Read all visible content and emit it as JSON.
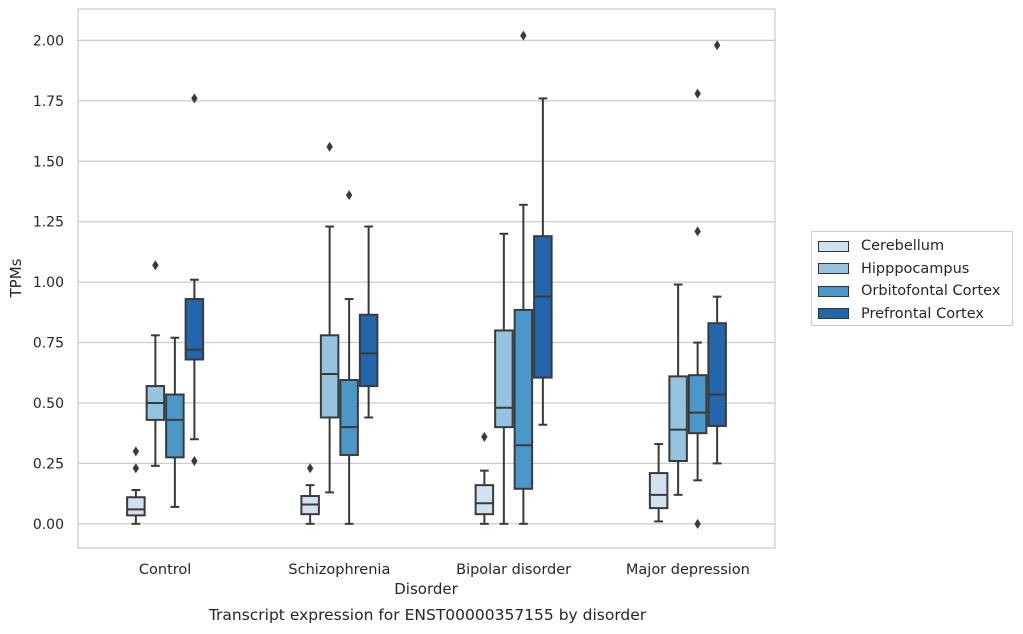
{
  "caption": "Transcript expression for ENST00000357155 by disorder",
  "chart_data": {
    "type": "box",
    "title": "",
    "xlabel": "Disorder",
    "ylabel": "TPMs",
    "ylim": [
      -0.1,
      2.13
    ],
    "yticks": [
      0.0,
      0.25,
      0.5,
      0.75,
      1.0,
      1.25,
      1.5,
      1.75,
      2.0
    ],
    "ytick_labels": [
      "0.00",
      "0.25",
      "0.50",
      "0.75",
      "1.00",
      "1.25",
      "1.50",
      "1.75",
      "2.00"
    ],
    "grid": "horizontal",
    "legend_position": "right",
    "categories": [
      "Control",
      "Schizophrenia",
      "Bipolar disorder",
      "Major depression"
    ],
    "series": [
      {
        "name": "Cerebellum",
        "color": "#d0e1f2",
        "boxes": [
          {
            "whislo": 0.0,
            "q1": 0.035,
            "med": 0.06,
            "q3": 0.11,
            "whishi": 0.14,
            "fliers": [
              0.23,
              0.3
            ]
          },
          {
            "whislo": 0.0,
            "q1": 0.04,
            "med": 0.08,
            "q3": 0.115,
            "whishi": 0.16,
            "fliers": [
              0.23
            ]
          },
          {
            "whislo": 0.0,
            "q1": 0.04,
            "med": 0.085,
            "q3": 0.16,
            "whishi": 0.22,
            "fliers": [
              0.36
            ]
          },
          {
            "whislo": 0.01,
            "q1": 0.065,
            "med": 0.12,
            "q3": 0.21,
            "whishi": 0.33,
            "fliers": []
          }
        ]
      },
      {
        "name": "Hipppocampus",
        "color": "#94c4df",
        "boxes": [
          {
            "whislo": 0.24,
            "q1": 0.43,
            "med": 0.5,
            "q3": 0.57,
            "whishi": 0.78,
            "fliers": [
              1.07
            ]
          },
          {
            "whislo": 0.13,
            "q1": 0.44,
            "med": 0.62,
            "q3": 0.78,
            "whishi": 1.23,
            "fliers": [
              1.56
            ]
          },
          {
            "whislo": 0.0,
            "q1": 0.4,
            "med": 0.48,
            "q3": 0.8,
            "whishi": 1.2,
            "fliers": []
          },
          {
            "whislo": 0.12,
            "q1": 0.26,
            "med": 0.39,
            "q3": 0.61,
            "whishi": 0.99,
            "fliers": []
          }
        ]
      },
      {
        "name": "Orbitofontal Cortex",
        "color": "#4a98c9",
        "boxes": [
          {
            "whislo": 0.07,
            "q1": 0.275,
            "med": 0.43,
            "q3": 0.535,
            "whishi": 0.77,
            "fliers": []
          },
          {
            "whislo": 0.0,
            "q1": 0.285,
            "med": 0.4,
            "q3": 0.595,
            "whishi": 0.93,
            "fliers": [
              1.36
            ]
          },
          {
            "whislo": 0.0,
            "q1": 0.145,
            "med": 0.325,
            "q3": 0.885,
            "whishi": 1.32,
            "fliers": [
              2.02
            ]
          },
          {
            "whislo": 0.18,
            "q1": 0.375,
            "med": 0.46,
            "q3": 0.615,
            "whishi": 0.75,
            "fliers": [
              0.0,
              1.21,
              1.78
            ]
          }
        ]
      },
      {
        "name": "Prefrontal Cortex",
        "color": "#2366ac",
        "boxes": [
          {
            "whislo": 0.35,
            "q1": 0.68,
            "med": 0.72,
            "q3": 0.93,
            "whishi": 1.01,
            "fliers": [
              0.26,
              1.76
            ]
          },
          {
            "whislo": 0.44,
            "q1": 0.57,
            "med": 0.705,
            "q3": 0.865,
            "whishi": 1.23,
            "fliers": []
          },
          {
            "whislo": 0.41,
            "q1": 0.605,
            "med": 0.94,
            "q3": 1.19,
            "whishi": 1.76,
            "fliers": []
          },
          {
            "whislo": 0.25,
            "q1": 0.405,
            "med": 0.535,
            "q3": 0.83,
            "whishi": 0.94,
            "fliers": [
              1.98
            ]
          }
        ]
      }
    ]
  }
}
